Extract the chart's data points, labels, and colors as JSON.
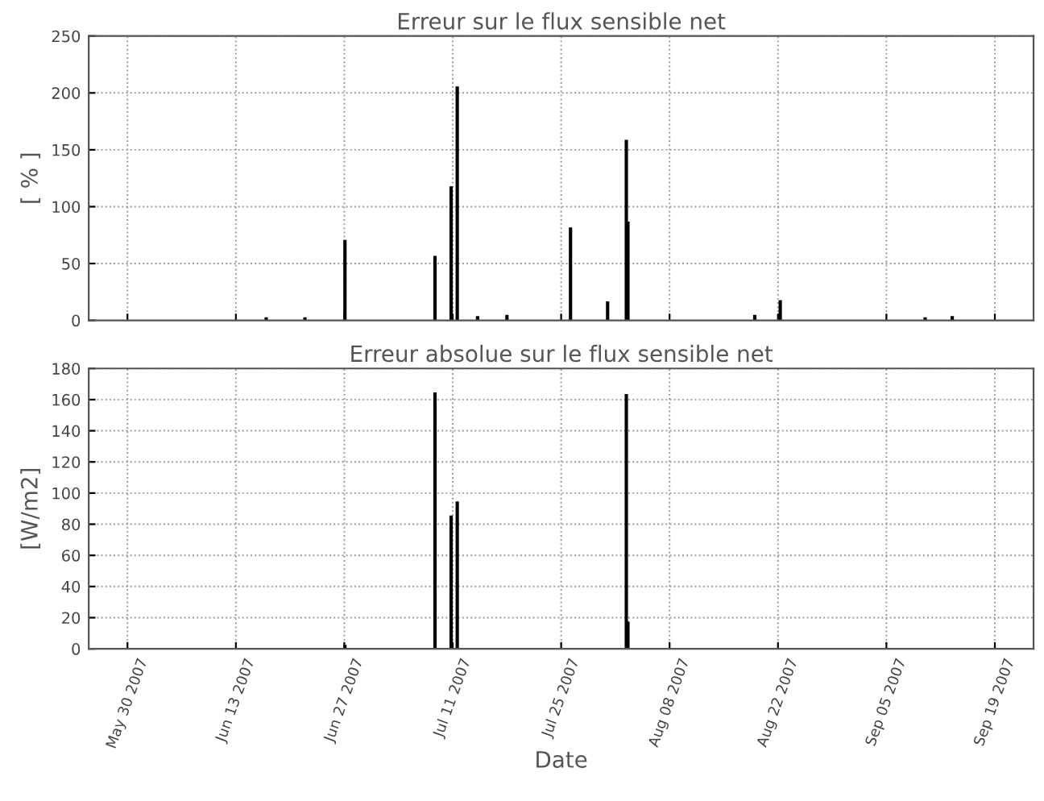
{
  "chart_data": [
    {
      "type": "bar",
      "title": "Erreur sur le flux sensible net",
      "ylabel": "[ % ]",
      "x": [
        "2007-06-16T22:00",
        "2007-06-21T22:00",
        "2007-06-27T02:00",
        "2007-07-08T17:00",
        "2007-07-10T19:00",
        "2007-07-11T14:00",
        "2007-07-14T05:00",
        "2007-07-18T00:00",
        "2007-07-26T05:00",
        "2007-07-31T00:00",
        "2007-08-02T10:00",
        "2007-08-02T15:00",
        "2007-08-19T00:00",
        "2007-08-22T07:00",
        "2007-09-10T00:00",
        "2007-09-13T12:00"
      ],
      "values": [
        2,
        2,
        70,
        56,
        117,
        205,
        3,
        4,
        81,
        16,
        158,
        86,
        4,
        17,
        2,
        3
      ],
      "color": "#000000",
      "xlim": [
        "2007-05-25",
        "2007-09-24"
      ],
      "xticks": [
        {
          "value": "2007-05-30",
          "label": null
        },
        {
          "value": "2007-06-13",
          "label": null
        },
        {
          "value": "2007-06-27",
          "label": null
        },
        {
          "value": "2007-07-11",
          "label": null
        },
        {
          "value": "2007-07-25",
          "label": null
        },
        {
          "value": "2007-08-08",
          "label": null
        },
        {
          "value": "2007-08-22",
          "label": null
        },
        {
          "value": "2007-09-05",
          "label": null
        },
        {
          "value": "2007-09-19",
          "label": null
        }
      ],
      "ylim": [
        0,
        250
      ],
      "yticks": [
        0,
        50,
        100,
        150,
        200,
        250
      ],
      "grid": true,
      "tick_labels": "y"
    },
    {
      "type": "bar",
      "title": "Erreur absolue sur le flux sensible net",
      "xlabel": "Date",
      "ylabel": "[W/m2]",
      "x": [
        "2007-06-27T02:00",
        "2007-07-08T17:00",
        "2007-07-10T19:00",
        "2007-07-11T14:00",
        "2007-08-02T10:00",
        "2007-08-02T15:00"
      ],
      "values": [
        2,
        164,
        85,
        94,
        163,
        17
      ],
      "color": "#000000",
      "xlim": [
        "2007-05-25",
        "2007-09-24"
      ],
      "xticks": [
        {
          "value": "2007-05-30",
          "label": "May 30 2007"
        },
        {
          "value": "2007-06-13",
          "label": "Jun 13 2007"
        },
        {
          "value": "2007-06-27",
          "label": "Jun 27 2007"
        },
        {
          "value": "2007-07-11",
          "label": "Jul 11 2007"
        },
        {
          "value": "2007-07-25",
          "label": "Jul 25 2007"
        },
        {
          "value": "2007-08-08",
          "label": "Aug 08 2007"
        },
        {
          "value": "2007-08-22",
          "label": "Aug 22 2007"
        },
        {
          "value": "2007-09-05",
          "label": "Sep 05 2007"
        },
        {
          "value": "2007-09-19",
          "label": "Sep 19 2007"
        }
      ],
      "ylim": [
        0,
        180
      ],
      "yticks": [
        0,
        20,
        40,
        60,
        80,
        100,
        120,
        140,
        160,
        180
      ],
      "grid": true
    }
  ]
}
